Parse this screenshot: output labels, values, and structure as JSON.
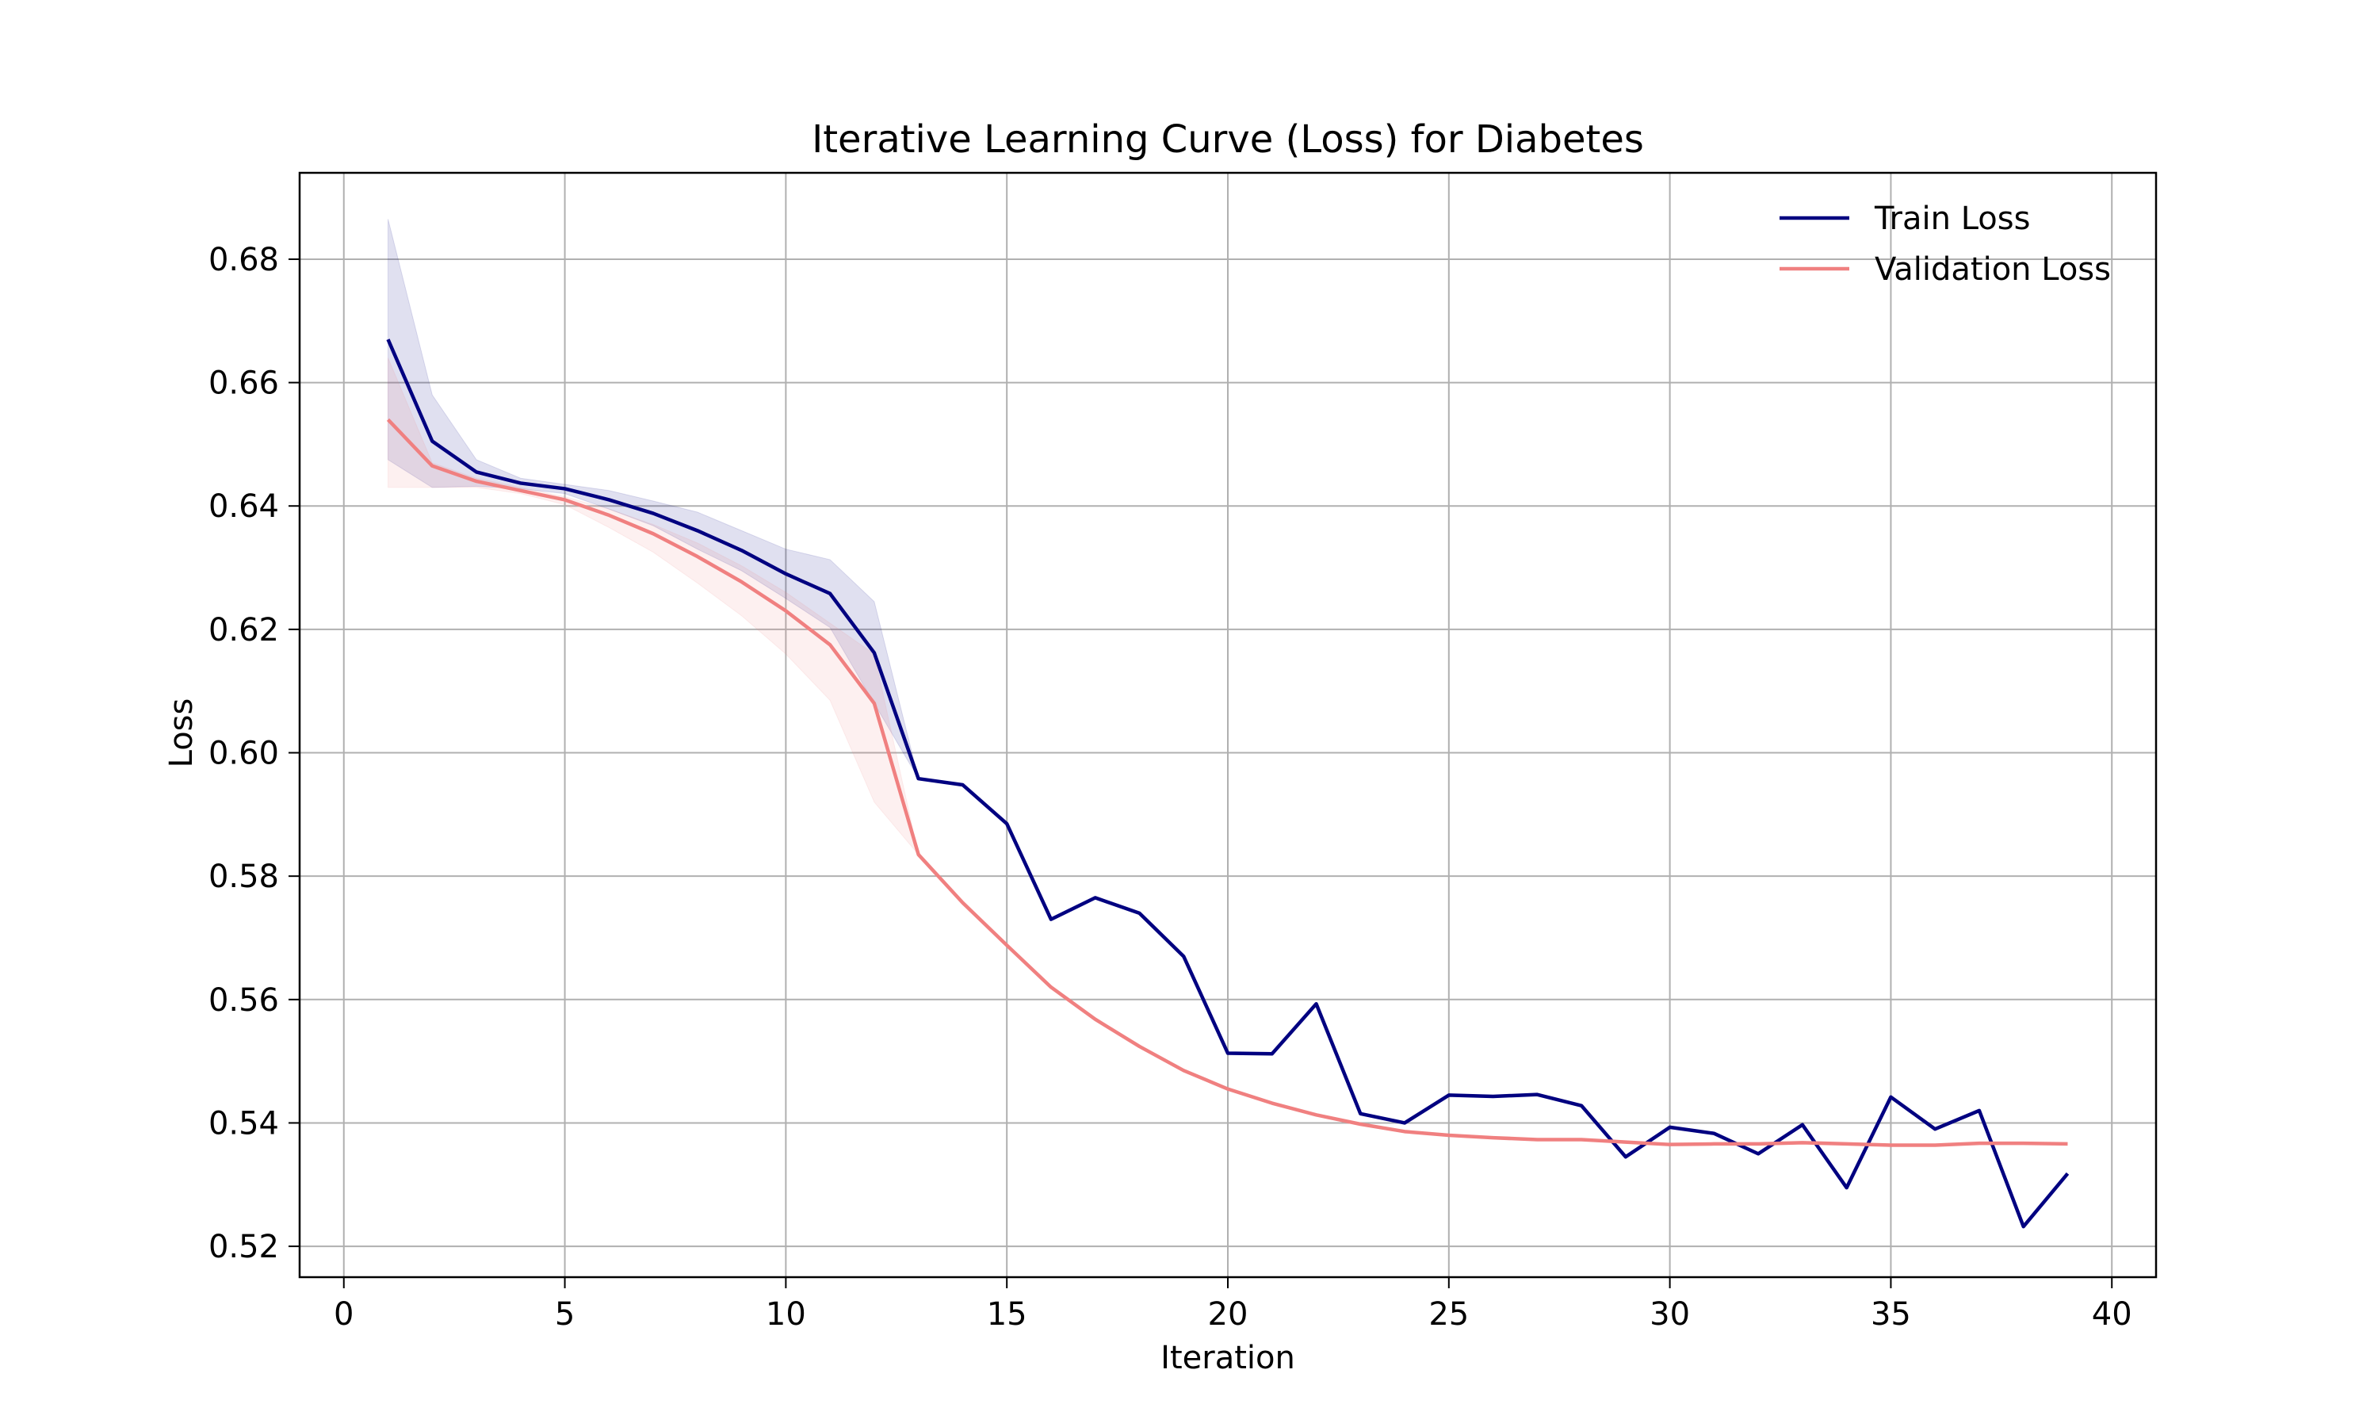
{
  "chart_data": {
    "type": "line",
    "title": "Iterative Learning Curve (Loss) for Diabetes",
    "xlabel": "Iteration",
    "ylabel": "Loss",
    "xlim": [
      -1,
      41
    ],
    "ylim": [
      0.515,
      0.694
    ],
    "xticks": [
      0,
      5,
      10,
      15,
      20,
      25,
      30,
      35,
      40
    ],
    "yticks": [
      0.52,
      0.54,
      0.56,
      0.58,
      0.6,
      0.62,
      0.64,
      0.66,
      0.68
    ],
    "xtick_labels": [
      "0",
      "5",
      "10",
      "15",
      "20",
      "25",
      "30",
      "35",
      "40"
    ],
    "ytick_labels": [
      "0.52",
      "0.54",
      "0.56",
      "0.58",
      "0.60",
      "0.62",
      "0.64",
      "0.66",
      "0.68"
    ],
    "grid": true,
    "legend_position": "top-right",
    "x": [
      1,
      2,
      3,
      4,
      5,
      6,
      7,
      8,
      9,
      10,
      11,
      12,
      13,
      14,
      15,
      16,
      17,
      18,
      19,
      20,
      21,
      22,
      23,
      24,
      25,
      26,
      27,
      28,
      29,
      30,
      31,
      32,
      33,
      34,
      35,
      36,
      37,
      38,
      39
    ],
    "series": [
      {
        "name": "Train Loss",
        "color": "#000080",
        "values": [
          0.667,
          0.6505,
          0.6455,
          0.6437,
          0.6428,
          0.641,
          0.6388,
          0.636,
          0.6328,
          0.629,
          0.6258,
          0.6162,
          0.5958,
          0.5948,
          0.5885,
          0.573,
          0.5765,
          0.574,
          0.567,
          0.5513,
          0.5512,
          0.5593,
          0.5415,
          0.54,
          0.5445,
          0.5443,
          0.5446,
          0.5428,
          0.5345,
          0.5393,
          0.5383,
          0.535,
          0.5397,
          0.5295,
          0.5442,
          0.539,
          0.542,
          0.5232,
          0.5318
        ],
        "band_upper": [
          0.6865,
          0.658,
          0.6475,
          0.6445,
          0.6435,
          0.6425,
          0.6408,
          0.639,
          0.636,
          0.633,
          0.6313,
          0.6245,
          0.5958,
          0.5948,
          0.5885,
          0.573,
          0.5765,
          0.574,
          0.567,
          0.5513,
          0.5512,
          0.5593,
          0.5415,
          0.54,
          0.5445,
          0.5443,
          0.5446,
          0.5428,
          0.5345,
          0.5393,
          0.5383,
          0.535,
          0.5397,
          0.5295,
          0.5442,
          0.539,
          0.542,
          0.5232,
          0.5318
        ],
        "band_lower": [
          0.6475,
          0.643,
          0.6432,
          0.6428,
          0.642,
          0.6395,
          0.6368,
          0.633,
          0.6295,
          0.625,
          0.6203,
          0.608,
          0.5958,
          0.5948,
          0.5885,
          0.573,
          0.5765,
          0.574,
          0.567,
          0.5513,
          0.5512,
          0.5593,
          0.5415,
          0.54,
          0.5445,
          0.5443,
          0.5446,
          0.5428,
          0.5345,
          0.5393,
          0.5383,
          0.535,
          0.5397,
          0.5295,
          0.5442,
          0.539,
          0.542,
          0.5232,
          0.5318
        ]
      },
      {
        "name": "Validation Loss",
        "color": "#f08080",
        "values": [
          0.654,
          0.6465,
          0.644,
          0.6425,
          0.641,
          0.6385,
          0.6355,
          0.6318,
          0.6277,
          0.623,
          0.6175,
          0.608,
          0.5835,
          0.5757,
          0.5688,
          0.562,
          0.5568,
          0.5524,
          0.5485,
          0.5455,
          0.5432,
          0.5413,
          0.5398,
          0.5386,
          0.538,
          0.5376,
          0.5373,
          0.5373,
          0.5369,
          0.5365,
          0.5366,
          0.5366,
          0.5368,
          0.5366,
          0.5364,
          0.5364,
          0.5367,
          0.5367,
          0.5366
        ],
        "band_upper": [
          0.664,
          0.647,
          0.6445,
          0.643,
          0.6415,
          0.6395,
          0.637,
          0.634,
          0.6303,
          0.626,
          0.621,
          0.616,
          0.5835,
          0.5757,
          0.5688,
          0.562,
          0.5568,
          0.5524,
          0.5485,
          0.5455,
          0.5432,
          0.5413,
          0.5398,
          0.5386,
          0.538,
          0.5376,
          0.5373,
          0.5373,
          0.5369,
          0.5365,
          0.5366,
          0.5366,
          0.5368,
          0.5366,
          0.5364,
          0.5364,
          0.5367,
          0.5367,
          0.5366
        ],
        "band_lower": [
          0.643,
          0.643,
          0.643,
          0.642,
          0.6402,
          0.6365,
          0.6325,
          0.6275,
          0.6222,
          0.616,
          0.6085,
          0.592,
          0.5835,
          0.5757,
          0.5688,
          0.562,
          0.5568,
          0.5524,
          0.5485,
          0.5455,
          0.5432,
          0.5413,
          0.5398,
          0.5386,
          0.538,
          0.5376,
          0.5373,
          0.5373,
          0.5369,
          0.5365,
          0.5366,
          0.5366,
          0.5368,
          0.5366,
          0.5364,
          0.5364,
          0.5367,
          0.5367,
          0.5366
        ]
      }
    ]
  }
}
